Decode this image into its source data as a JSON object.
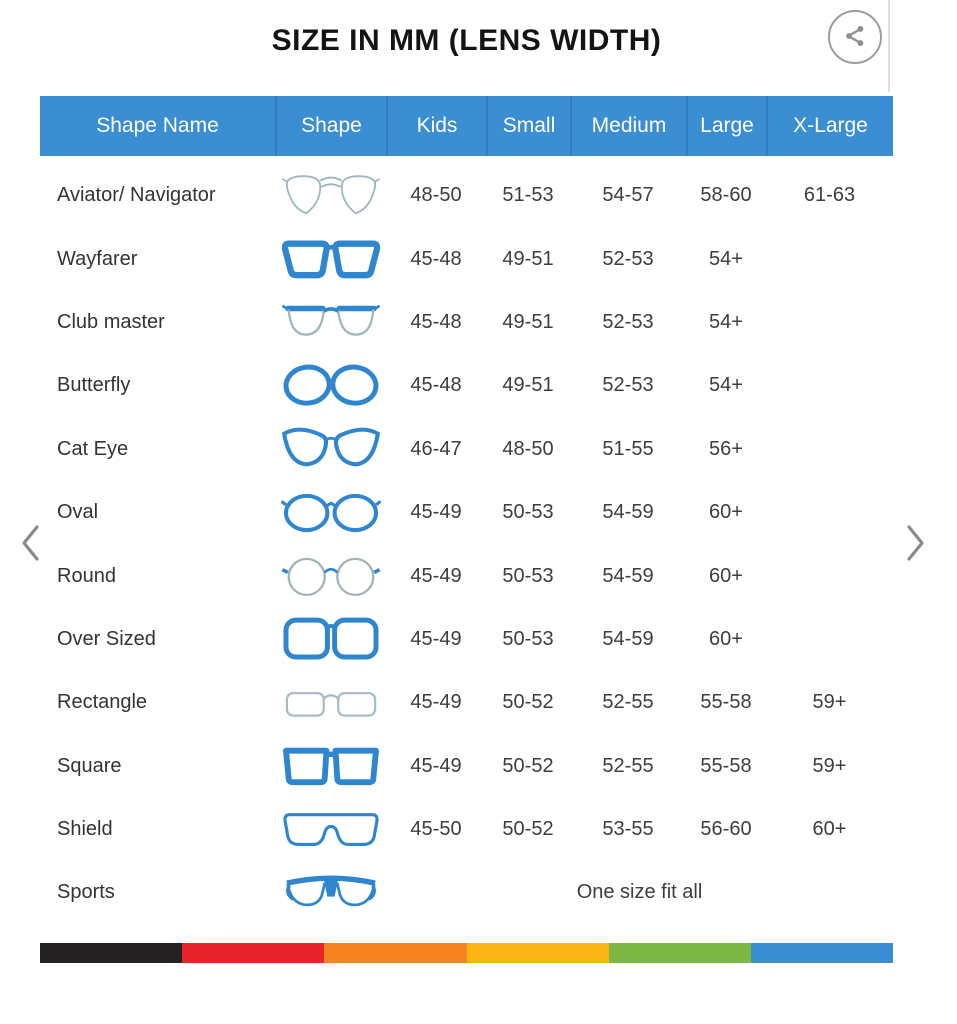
{
  "title": "SIZE IN MM (LENS WIDTH)",
  "table": {
    "headers": [
      "Shape Name",
      "Shape",
      "Kids",
      "Small",
      "Medium",
      "Large",
      "X-Large"
    ],
    "rows": [
      {
        "name": "Aviator/ Navigator",
        "icon": "aviator",
        "sizes": [
          "48-50",
          "51-53",
          "54-57",
          "58-60",
          "61-63"
        ]
      },
      {
        "name": "Wayfarer",
        "icon": "wayfarer",
        "sizes": [
          "45-48",
          "49-51",
          "52-53",
          "54+",
          ""
        ]
      },
      {
        "name": "Club master",
        "icon": "clubmaster",
        "sizes": [
          "45-48",
          "49-51",
          "52-53",
          "54+",
          ""
        ]
      },
      {
        "name": "Butterfly",
        "icon": "butterfly",
        "sizes": [
          "45-48",
          "49-51",
          "52-53",
          "54+",
          ""
        ]
      },
      {
        "name": "Cat Eye",
        "icon": "cateye",
        "sizes": [
          "46-47",
          "48-50",
          "51-55",
          "56+",
          ""
        ]
      },
      {
        "name": "Oval",
        "icon": "oval",
        "sizes": [
          "45-49",
          "50-53",
          "54-59",
          "60+",
          ""
        ]
      },
      {
        "name": "Round",
        "icon": "round",
        "sizes": [
          "45-49",
          "50-53",
          "54-59",
          "60+",
          ""
        ]
      },
      {
        "name": "Over Sized",
        "icon": "oversized",
        "sizes": [
          "45-49",
          "50-53",
          "54-59",
          "60+",
          ""
        ]
      },
      {
        "name": "Rectangle",
        "icon": "rectangle",
        "sizes": [
          "45-49",
          "50-52",
          "52-55",
          "55-58",
          "59+"
        ]
      },
      {
        "name": "Square",
        "icon": "square",
        "sizes": [
          "45-49",
          "50-52",
          "52-55",
          "55-58",
          "59+"
        ]
      },
      {
        "name": "Shield",
        "icon": "shield",
        "sizes": [
          "45-50",
          "50-52",
          "53-55",
          "56-60",
          "60+"
        ]
      },
      {
        "name": "Sports",
        "icon": "sports",
        "sizes_note": "One size fit all"
      }
    ]
  },
  "colors": {
    "header_bg": "#3b8ed2",
    "accent_blue": "#2f86cf",
    "bar_segments": [
      "#242122",
      "#e8232a",
      "#f5831f",
      "#fbb616",
      "#7bb844",
      "#3c8ed3"
    ]
  }
}
